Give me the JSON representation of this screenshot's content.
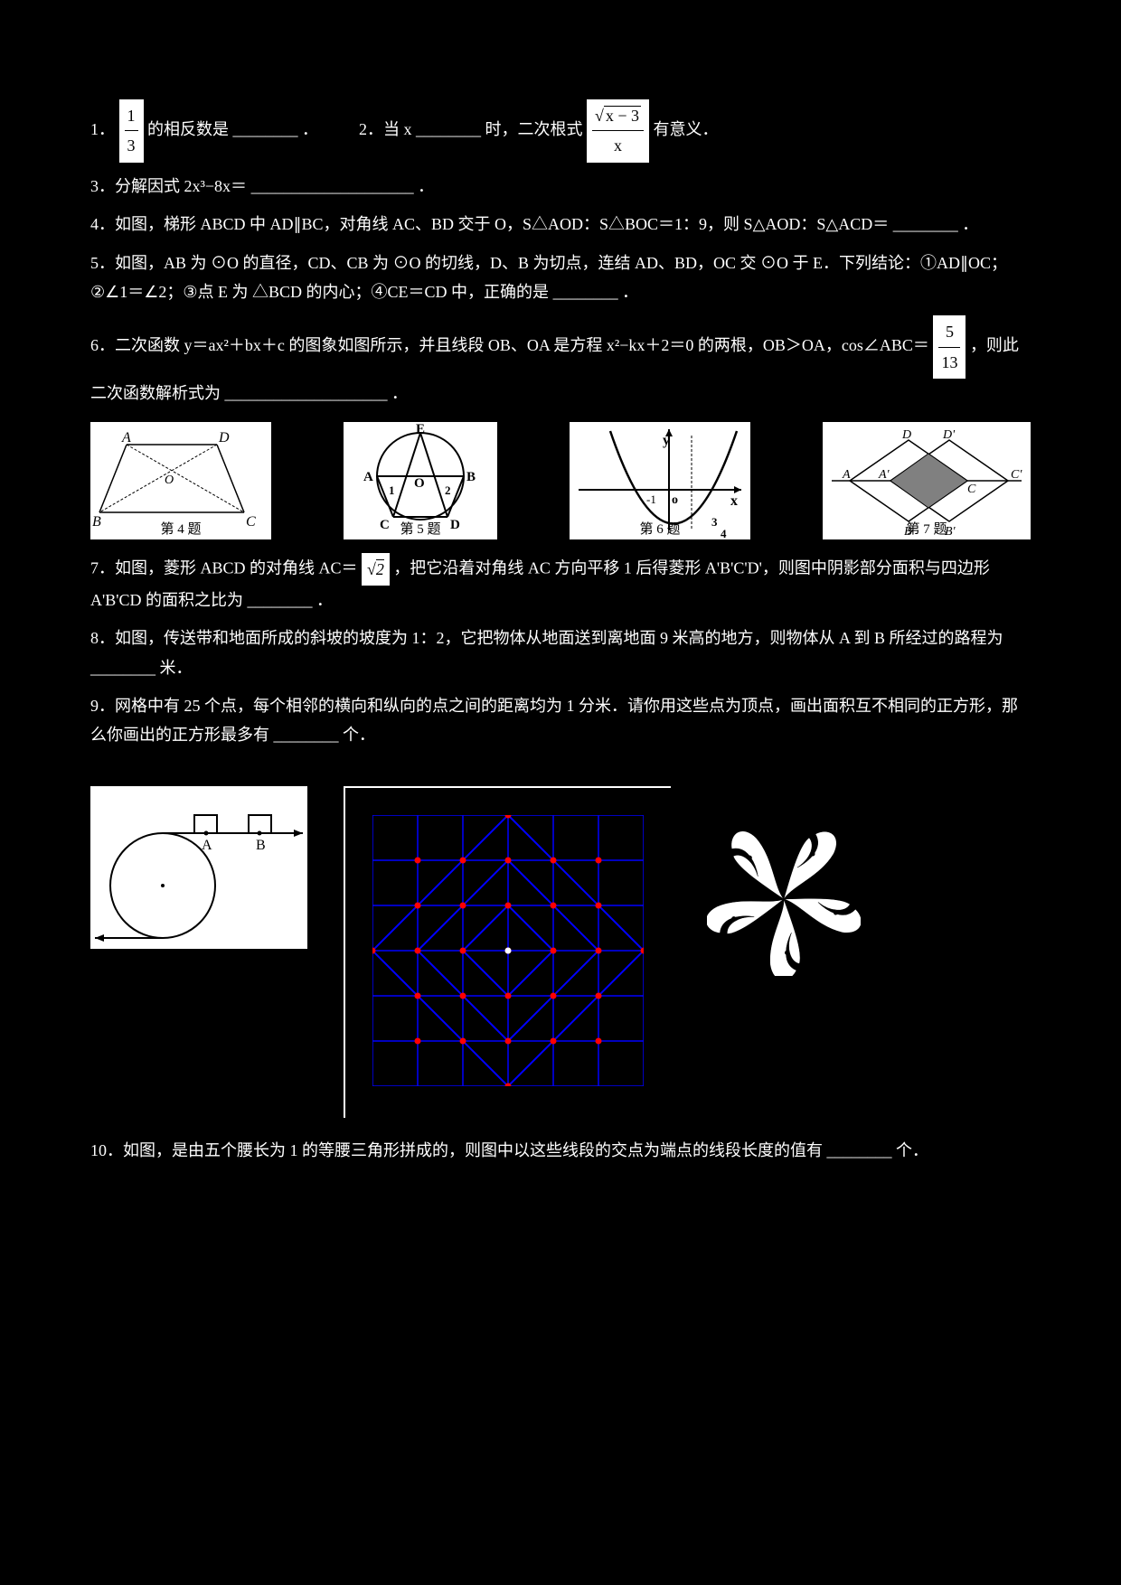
{
  "page": {
    "background": "#000000",
    "text_color": "#ffffff",
    "figure_background": "#ffffff",
    "figure_stroke": "#000000",
    "font_family": "SimSun, serif",
    "math_font": "Times New Roman, serif"
  },
  "q1": {
    "text_a": "1．",
    "frac": {
      "num": "1",
      "den": "3"
    },
    "text_b": "的相反数是",
    "blank": "．",
    "text_c": "2．当 x",
    "blank2": "时，二次根式",
    "expr": {
      "num_sqrt": "x − 3",
      "den": "x"
    },
    "text_d": "有意义．"
  },
  "q3": {
    "text": "3．分解因式 2x³−8x＝",
    "blank": "．"
  },
  "q4": {
    "text": "4．如图，梯形 ABCD 中 AD∥BC，对角线 AC、BD 交于 O，S△AOD：S△BOC＝1：9，则 S△AOD：S△ACD＝",
    "blank": "．"
  },
  "q5": {
    "text": "5．如图，AB 为 ⊙O 的直径，CD、CB 为 ⊙O 的切线，D、B 为切点，连结 AD、BD，OC 交 ⊙O 于 E．下列结论：①AD∥OC；②∠1＝∠2；③点 E 为 △BCD 的内心；④CE＝CD 中，正确的是",
    "blank": "．"
  },
  "q6": {
    "text": "6．二次函数 y＝ax²＋bx＋c 的图象如图所示，并且线段 OB、OA 是方程 x²−kx＋2＝0 的两根，OB＞OA，cos∠ABC＝",
    "frac": {
      "num": "5",
      "den": "13"
    },
    "text2": "，则此二次函数解析式为",
    "blank": "．"
  },
  "fig4": {
    "caption": "第 4 题",
    "labels": [
      "A",
      "B",
      "C",
      "D",
      "O"
    ]
  },
  "fig5": {
    "caption": "第 5 题",
    "labels": [
      "A",
      "B",
      "C",
      "D",
      "E",
      "O",
      "1",
      "2"
    ]
  },
  "fig6": {
    "caption": "第 6 题",
    "labels": [
      "y",
      "x",
      "o",
      "-1",
      "3",
      "4"
    ],
    "parabola_color": "#000000"
  },
  "fig7": {
    "caption": "第 7 题",
    "labels": [
      "A",
      "B",
      "C",
      "D",
      "A'",
      "B'",
      "C'",
      "D'"
    ],
    "shade_fill": "#808080"
  },
  "q7": {
    "text_a": "7．如图，菱形 ABCD 的对角线 AC＝",
    "sqrt": "2",
    "text_b": "，把它沿着对角线 AC 方向平移 1 后得菱形 A'B'C'D'，则图中阴影部分面积与四边形 A'B'CD 的面积之比为",
    "blank": "．"
  },
  "q8": {
    "text": "8．如图，传送带和地面所成的斜坡的坡度为 1：2，它把物体从地面送到离地面 9 米高的地方，则物体从 A 到 B 所经过的路程为",
    "blank": "米．"
  },
  "q9": {
    "text": "9．网格中有 25 个点，每个相邻的横向和纵向的点之间的距离均为 1 分米．请你用这些点为顶点，画出面积互不相同的正方形，那么你画出的正方形最多有",
    "blank": "个．"
  },
  "fig8": {
    "labels": [
      "A",
      "B"
    ],
    "circle_stroke": "#ffffff",
    "box_stroke": "#ffffff"
  },
  "fig9": {
    "grid_size": 6,
    "dot_color": "#ff0000",
    "line_color": "#0000ff",
    "rotated_square_colors": [
      "#0000ff",
      "#0000ff",
      "#0000ff"
    ],
    "center_dot": "#ffffff"
  },
  "fig10": {
    "type": "flower",
    "petals": 5,
    "fill": "#ffffff",
    "stroke": "#000000"
  },
  "q10": {
    "text": "10．如图，是由五个腰长为 1 的等腰三角形拼成的，则图中以这些线段的交点为端点的线段长度的值有",
    "blank": "个．"
  }
}
